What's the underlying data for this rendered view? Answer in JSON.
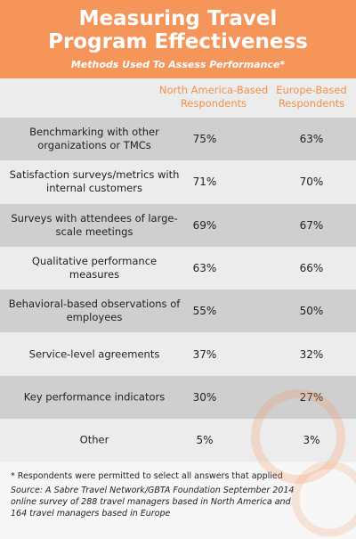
{
  "header": {
    "title": "Measuring Travel Program Effectiveness",
    "subtitle": "Methods Used To Assess Performance*"
  },
  "table": {
    "columns": [
      "North America-Based Respondents",
      "Europe-Based Respondents"
    ],
    "rows": [
      {
        "label": "Benchmarking with other organizations or TMCs",
        "values": [
          "75%",
          "63%"
        ]
      },
      {
        "label": "Satisfaction surveys/metrics with internal customers",
        "values": [
          "71%",
          "70%"
        ]
      },
      {
        "label": "Surveys with attendees of large-scale meetings",
        "values": [
          "69%",
          "67%"
        ]
      },
      {
        "label": "Qualitative performance measures",
        "values": [
          "63%",
          "66%"
        ]
      },
      {
        "label": "Behavioral-based observations of employees",
        "values": [
          "55%",
          "50%"
        ]
      },
      {
        "label": "Service-level agreements",
        "values": [
          "37%",
          "32%"
        ]
      },
      {
        "label": "Key performance indicators",
        "values": [
          "30%",
          "27%"
        ]
      },
      {
        "label": "Other",
        "values": [
          "5%",
          "3%"
        ]
      }
    ]
  },
  "footer": {
    "note": "* Respondents were permitted to select all answers that applied",
    "source": "Source: A Sabre Travel Network/GBTA Foundation September 2014 online survey of 288 travel managers based in North America and 164 travel managers based in Europe"
  }
}
